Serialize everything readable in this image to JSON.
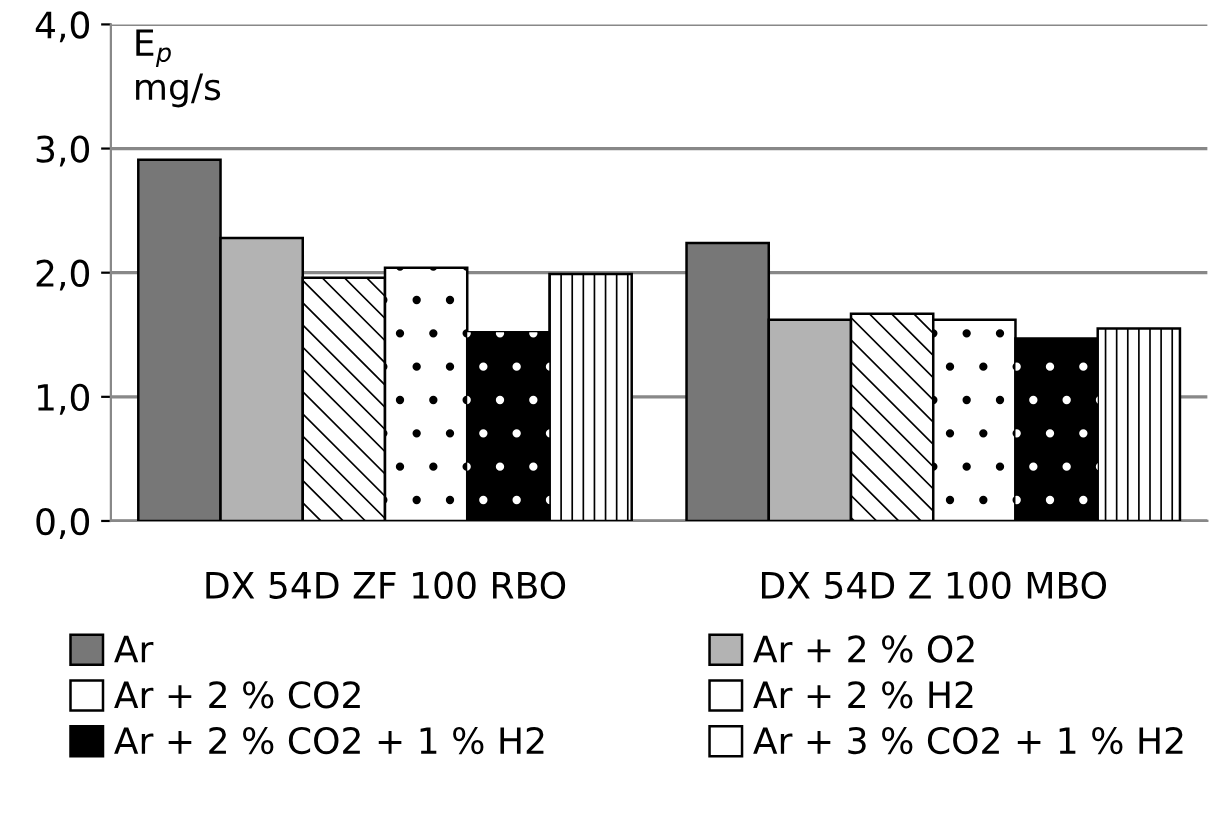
{
  "chart_data": {
    "type": "bar",
    "ylabel": "E$_{p}$\nmg/s",
    "categories": [
      "DX 54D ZF 100 RBO",
      "DX 54D Z 100 MBO"
    ],
    "series": [
      {
        "name": "Ar",
        "color": "#777777",
        "values": [
          2.91,
          2.24
        ]
      },
      {
        "name": "Ar + 2 % O2",
        "color": "#b3b3b3",
        "values": [
          2.28,
          1.62
        ]
      },
      {
        "name": "Ar + 2 % CO2",
        "color": "#ffffff",
        "values": [
          1.96,
          1.67
        ]
      },
      {
        "name": "Ar + 2 % H2",
        "color": "#ffffff",
        "values": [
          2.04,
          1.62
        ]
      },
      {
        "name": "Ar + 2 % CO2 + 1 % H2",
        "color": "#000000",
        "values": [
          1.52,
          1.47
        ]
      },
      {
        "name": "Ar + 3 % CO2 + 1 % H2",
        "color": "#ffffff",
        "values": [
          1.99,
          1.55
        ]
      }
    ],
    "ylim": [
      0,
      4
    ],
    "yticks": [
      {
        "value": 0,
        "label": "0,0"
      },
      {
        "value": 1,
        "label": "1,0"
      },
      {
        "value": 2,
        "label": "2,0"
      },
      {
        "value": 3,
        "label": "3,0"
      },
      {
        "value": 4,
        "label": "4,0"
      }
    ],
    "grid": "y",
    "legend": "bottom"
  }
}
